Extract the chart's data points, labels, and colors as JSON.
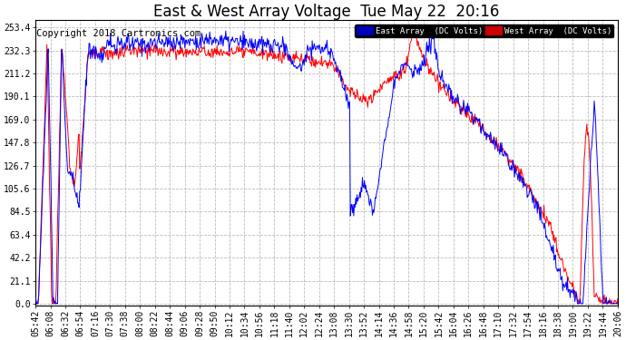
{
  "title": "East & West Array Voltage  Tue May 22  20:16",
  "copyright": "Copyright 2018 Cartronics.com",
  "legend_east": "East Array  (DC Volts)",
  "legend_west": "West Array  (DC Volts)",
  "east_color": "#0000ff",
  "west_color": "#ff0000",
  "legend_east_bg": "#0000bb",
  "legend_west_bg": "#cc0000",
  "background_color": "#ffffff",
  "plot_bg_color": "#ffffff",
  "grid_color": "#aaaaaa",
  "yticks": [
    0.0,
    21.1,
    42.2,
    63.4,
    84.5,
    105.6,
    126.7,
    147.8,
    169.0,
    190.1,
    211.2,
    232.3,
    253.4
  ],
  "ylim": [
    -2,
    260
  ],
  "xtick_labels": [
    "05:42",
    "06:08",
    "06:32",
    "06:54",
    "07:16",
    "07:30",
    "07:38",
    "08:00",
    "08:22",
    "08:44",
    "09:06",
    "09:28",
    "09:50",
    "10:12",
    "10:34",
    "10:56",
    "11:18",
    "11:40",
    "12:02",
    "12:24",
    "13:08",
    "13:30",
    "13:52",
    "14:14",
    "14:36",
    "14:58",
    "15:20",
    "15:42",
    "16:04",
    "16:26",
    "16:48",
    "17:10",
    "17:32",
    "17:54",
    "18:16",
    "18:38",
    "19:00",
    "19:22",
    "19:44",
    "20:06"
  ],
  "title_fontsize": 12,
  "tick_fontsize": 7,
  "copyright_fontsize": 7.5
}
